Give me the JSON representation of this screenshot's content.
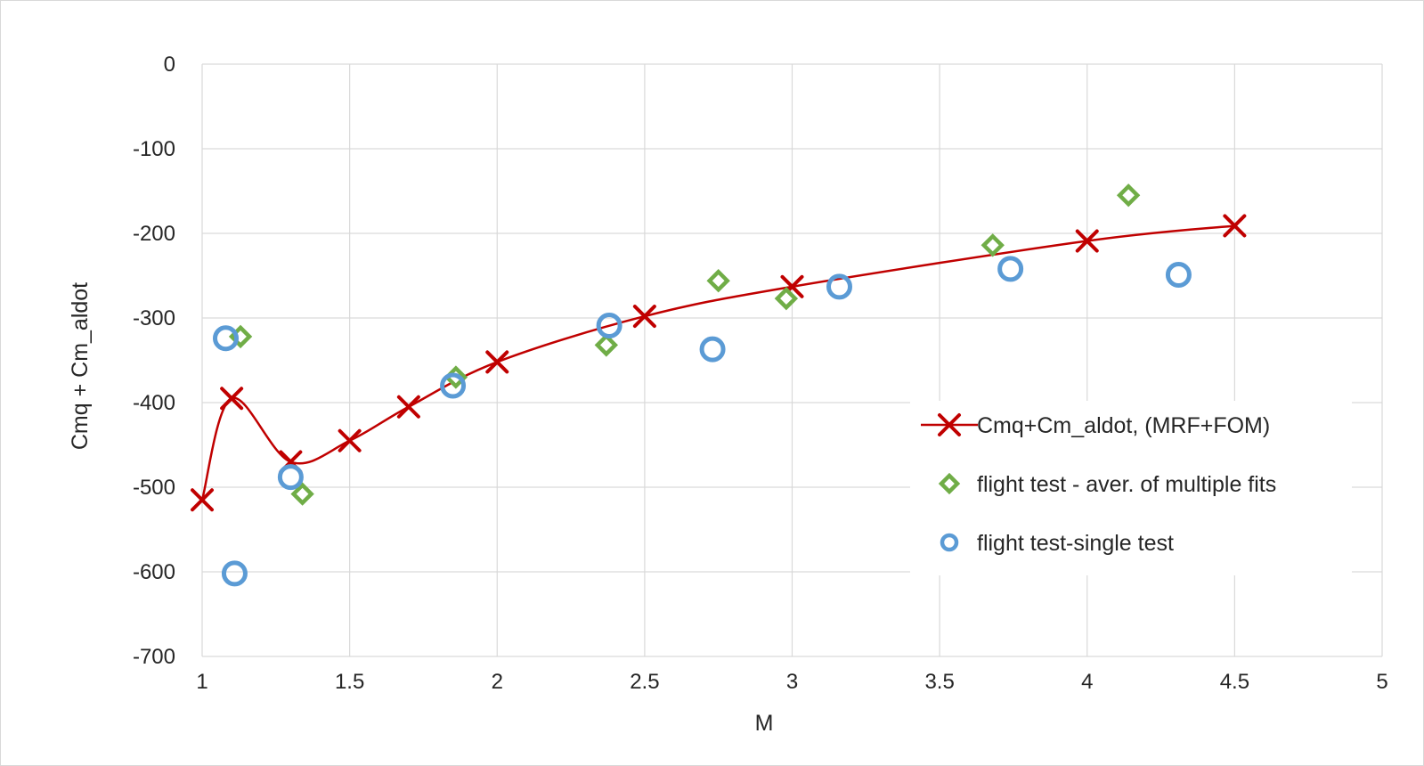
{
  "chart_data": {
    "type": "scatter",
    "title": "",
    "xlabel": "M",
    "ylabel": "Cmq + Cm_aldot",
    "xlim": [
      1,
      5
    ],
    "ylim": [
      -700,
      0
    ],
    "x_ticks": [
      1,
      1.5,
      2,
      2.5,
      3,
      3.5,
      4,
      4.5,
      5
    ],
    "x_tick_labels": [
      "1",
      "1.5",
      "2",
      "2.5",
      "3",
      "3.5",
      "4",
      "4.5",
      "5"
    ],
    "y_ticks": [
      0,
      -100,
      -200,
      -300,
      -400,
      -500,
      -600,
      -700
    ],
    "y_tick_labels": [
      "0",
      "-100",
      "-200",
      "-300",
      "-400",
      "-500",
      "-600",
      "-700"
    ],
    "grid": true,
    "legend_position": "center-right",
    "series": [
      {
        "name": "Cmq+Cm_aldot, (MRF+FOM)",
        "style": "line-x-marker",
        "color": "#C00000",
        "points": [
          [
            1.0,
            -515
          ],
          [
            1.1,
            -395
          ],
          [
            1.3,
            -470
          ],
          [
            1.5,
            -445
          ],
          [
            1.7,
            -405
          ],
          [
            2.0,
            -352
          ],
          [
            2.5,
            -298
          ],
          [
            3.0,
            -263
          ],
          [
            4.0,
            -209
          ],
          [
            4.5,
            -191
          ]
        ]
      },
      {
        "name": "flight test - aver. of multiple fits",
        "style": "diamond-marker",
        "color": "#70AD47",
        "points": [
          [
            1.13,
            -322
          ],
          [
            1.34,
            -508
          ],
          [
            1.86,
            -370
          ],
          [
            2.37,
            -332
          ],
          [
            2.75,
            -256
          ],
          [
            2.98,
            -277
          ],
          [
            3.68,
            -214
          ],
          [
            4.14,
            -155
          ]
        ]
      },
      {
        "name": "flight test-single test",
        "style": "circle-marker",
        "color": "#5B9BD5",
        "points": [
          [
            1.08,
            -324
          ],
          [
            1.11,
            -602
          ],
          [
            1.3,
            -488
          ],
          [
            1.85,
            -380
          ],
          [
            2.38,
            -309
          ],
          [
            2.73,
            -337
          ],
          [
            3.16,
            -263
          ],
          [
            3.74,
            -242
          ],
          [
            4.31,
            -249
          ]
        ]
      }
    ]
  }
}
